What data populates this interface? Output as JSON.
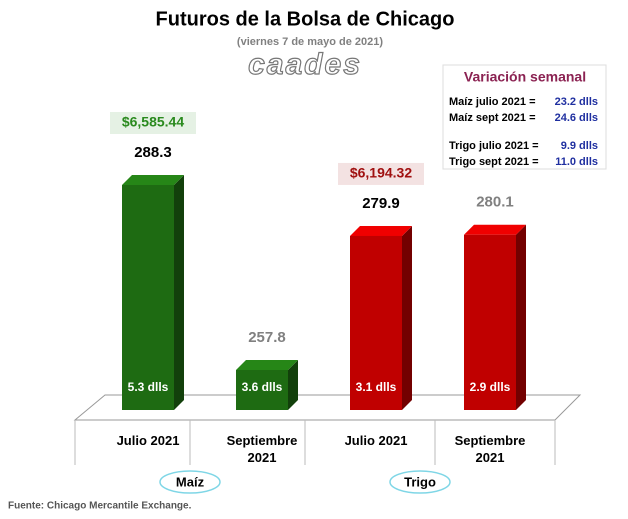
{
  "chart_data": {
    "type": "bar3d",
    "title": "Futuros de la Bolsa de Chicago",
    "subtitle": "(viernes 7 de mayo de 2021)",
    "logo": "caades",
    "categories": [
      "Julio 2021",
      "Septiembre 2021",
      "Julio 2021",
      "Septiembre 2021"
    ],
    "values": [
      288.3,
      257.8,
      279.9,
      280.1
    ],
    "colors": [
      "#1e6b12",
      "#1e6b12",
      "#c00000",
      "#c00000"
    ],
    "value_label_colors": [
      "#000000",
      "#808080",
      "#000000",
      "#808080"
    ],
    "bar_labels": [
      "5.3 dlls",
      "3.6 dlls",
      "3.1 dlls",
      "2.9 dlls"
    ],
    "groups": [
      {
        "name": "Maíz",
        "price": "$6,585.44",
        "color": "#2a8a1e"
      },
      {
        "name": "Trigo",
        "price": "$6,194.32",
        "color": "#a01010"
      }
    ],
    "weekly_change": {
      "title": "Variación semanal",
      "rows": [
        {
          "label": "Maíz julio 2021 =",
          "value": "23.2 dlls"
        },
        {
          "label": "Maíz sept 2021 =",
          "value": "24.6 dlls"
        },
        {
          "label": "Trigo julio 2021 =",
          "value": "9.9 dlls"
        },
        {
          "label": "Trigo sept 2021 =",
          "value": "11.0 dlls"
        }
      ]
    },
    "source": "Fuente: Chicago Mercantile Exchange."
  }
}
